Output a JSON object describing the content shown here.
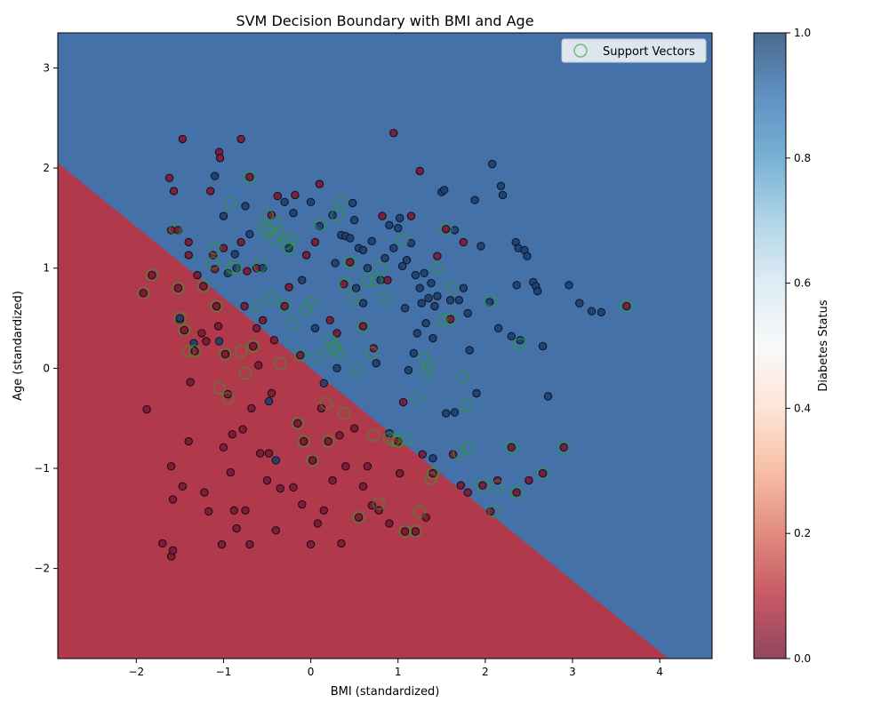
{
  "chart_data": {
    "type": "scatter",
    "title": "SVM Decision Boundary with BMI and Age",
    "xlabel": "BMI (standardized)",
    "ylabel": "Age (standardized)",
    "xlim": [
      -2.9,
      4.6
    ],
    "ylim": [
      -2.9,
      3.35
    ],
    "xticks": [
      -2,
      -1,
      0,
      1,
      2,
      3,
      4
    ],
    "yticks": [
      -2,
      -1,
      0,
      1,
      2,
      3
    ],
    "grid": false,
    "legend": {
      "placement": "top-right",
      "entries": [
        "Support Vectors"
      ]
    },
    "decision_boundary": {
      "comment_free": true,
      "x": [
        -2.9,
        4.1
      ],
      "y": [
        2.05,
        -2.9
      ],
      "region_above_class": 1,
      "region_below_class": 0
    },
    "colorbar": {
      "label": "Diabetes Status",
      "range": [
        0.0,
        1.0
      ],
      "ticks": [
        "0.0",
        "0.2",
        "0.4",
        "0.6",
        "0.8",
        "1.0"
      ]
    },
    "colors": {
      "class0_region": "#b03a4c",
      "class1_region": "#4471a8",
      "class0_point": "#7a1a35",
      "class1_point": "#1f3f6e",
      "support_vector_ring": "#2ca02c"
    },
    "points_class0": [
      [
        -1.92,
        0.75
      ],
      [
        -1.88,
        -0.41
      ],
      [
        -1.82,
        0.93
      ],
      [
        -1.7,
        -1.75
      ],
      [
        -1.62,
        1.9
      ],
      [
        -1.6,
        -1.88
      ],
      [
        -1.58,
        -1.82
      ],
      [
        -1.6,
        1.38
      ],
      [
        -1.57,
        1.77
      ],
      [
        -1.6,
        -0.98
      ],
      [
        -1.58,
        -1.31
      ],
      [
        -1.52,
        1.38
      ],
      [
        -1.5,
        0.48
      ],
      [
        -1.52,
        0.8
      ],
      [
        -1.47,
        2.29
      ],
      [
        -1.47,
        -1.18
      ],
      [
        -1.45,
        0.38
      ],
      [
        -1.4,
        1.26
      ],
      [
        -1.4,
        1.13
      ],
      [
        -1.4,
        -0.73
      ],
      [
        -1.38,
        -0.14
      ],
      [
        -1.33,
        0.17
      ],
      [
        -1.3,
        0.93
      ],
      [
        -1.25,
        0.35
      ],
      [
        -1.23,
        0.82
      ],
      [
        -1.22,
        -1.24
      ],
      [
        -1.17,
        -1.43
      ],
      [
        -1.15,
        1.77
      ],
      [
        -1.12,
        1.13
      ],
      [
        -1.1,
        0.99
      ],
      [
        -1.08,
        0.62
      ],
      [
        -1.06,
        0.42
      ],
      [
        -1.05,
        2.16
      ],
      [
        -1.04,
        2.1
      ],
      [
        -1.0,
        -0.79
      ],
      [
        -1.02,
        -1.76
      ],
      [
        -1.0,
        1.2
      ],
      [
        -0.98,
        0.14
      ],
      [
        -0.95,
        -0.26
      ],
      [
        -0.9,
        -0.66
      ],
      [
        -0.88,
        -1.42
      ],
      [
        -0.85,
        -1.6
      ],
      [
        -0.8,
        2.29
      ],
      [
        -0.8,
        1.26
      ],
      [
        -0.78,
        -0.61
      ],
      [
        -0.76,
        0.62
      ],
      [
        -0.75,
        -1.42
      ],
      [
        -0.73,
        0.97
      ],
      [
        -0.7,
        1.91
      ],
      [
        -0.7,
        -1.76
      ],
      [
        -0.68,
        -0.4
      ],
      [
        -0.66,
        0.22
      ],
      [
        -0.62,
        1.0
      ],
      [
        -0.6,
        0.03
      ],
      [
        -0.58,
        -0.85
      ],
      [
        -0.55,
        0.48
      ],
      [
        -0.5,
        -1.12
      ],
      [
        -0.48,
        -0.85
      ],
      [
        -0.45,
        1.53
      ],
      [
        -0.42,
        0.28
      ],
      [
        -0.4,
        -1.62
      ],
      [
        -0.38,
        1.72
      ],
      [
        -0.35,
        -1.2
      ],
      [
        -0.3,
        0.62
      ],
      [
        -0.25,
        0.81
      ],
      [
        -0.2,
        -1.19
      ],
      [
        -0.18,
        1.73
      ],
      [
        -0.15,
        -0.55
      ],
      [
        -0.12,
        0.13
      ],
      [
        -0.1,
        -1.36
      ],
      [
        -0.08,
        -0.73
      ],
      [
        -0.05,
        1.13
      ],
      [
        0.0,
        -1.76
      ],
      [
        0.02,
        -0.92
      ],
      [
        0.05,
        1.26
      ],
      [
        0.08,
        -1.55
      ],
      [
        0.1,
        1.84
      ],
      [
        0.15,
        -1.42
      ],
      [
        0.2,
        -0.73
      ],
      [
        0.22,
        0.48
      ],
      [
        0.25,
        -1.12
      ],
      [
        0.3,
        0.35
      ],
      [
        0.33,
        -0.67
      ],
      [
        0.35,
        -1.75
      ],
      [
        0.38,
        0.84
      ],
      [
        0.4,
        -0.98
      ],
      [
        0.45,
        1.06
      ],
      [
        0.5,
        -0.6
      ],
      [
        0.55,
        -1.49
      ],
      [
        0.6,
        0.42
      ],
      [
        0.65,
        -0.98
      ],
      [
        0.7,
        -1.37
      ],
      [
        0.72,
        0.2
      ],
      [
        0.78,
        -1.42
      ],
      [
        0.82,
        1.52
      ],
      [
        0.88,
        0.88
      ],
      [
        0.9,
        -1.55
      ],
      [
        0.95,
        2.35
      ],
      [
        1.0,
        -0.73
      ],
      [
        1.02,
        -1.05
      ],
      [
        1.06,
        -0.34
      ],
      [
        1.08,
        -1.63
      ],
      [
        1.15,
        1.52
      ],
      [
        1.2,
        -1.63
      ],
      [
        1.25,
        1.97
      ],
      [
        1.28,
        -0.86
      ],
      [
        1.32,
        -1.49
      ],
      [
        1.4,
        -1.05
      ],
      [
        1.45,
        1.12
      ],
      [
        1.55,
        1.39
      ],
      [
        1.6,
        0.49
      ],
      [
        1.63,
        -0.86
      ],
      [
        1.72,
        -1.17
      ],
      [
        1.75,
        1.26
      ],
      [
        1.8,
        -1.24
      ],
      [
        1.97,
        -1.17
      ],
      [
        2.06,
        -1.43
      ],
      [
        2.14,
        -1.12
      ],
      [
        2.3,
        -0.79
      ],
      [
        2.36,
        -1.24
      ],
      [
        2.5,
        -1.12
      ],
      [
        2.66,
        -1.05
      ],
      [
        2.9,
        -0.79
      ],
      [
        3.62,
        0.62
      ],
      [
        -1.2,
        0.27
      ],
      [
        -0.92,
        -1.04
      ],
      [
        -0.62,
        0.4
      ],
      [
        -0.45,
        -0.25
      ],
      [
        0.12,
        -0.4
      ],
      [
        0.6,
        -1.18
      ]
    ],
    "points_class1": [
      [
        -1.5,
        0.5
      ],
      [
        -1.34,
        0.25
      ],
      [
        -1.1,
        1.92
      ],
      [
        -1.05,
        0.27
      ],
      [
        -1.0,
        1.52
      ],
      [
        -0.95,
        0.95
      ],
      [
        -0.87,
        1.14
      ],
      [
        -0.75,
        1.62
      ],
      [
        -0.7,
        1.34
      ],
      [
        -0.55,
        1.0
      ],
      [
        -0.48,
        -0.33
      ],
      [
        -0.4,
        -0.92
      ],
      [
        -0.3,
        1.66
      ],
      [
        -0.2,
        1.55
      ],
      [
        -0.1,
        0.88
      ],
      [
        0.0,
        1.66
      ],
      [
        0.05,
        0.4
      ],
      [
        0.1,
        1.42
      ],
      [
        0.15,
        -0.15
      ],
      [
        0.25,
        1.53
      ],
      [
        0.3,
        0.0
      ],
      [
        0.35,
        1.33
      ],
      [
        0.4,
        1.32
      ],
      [
        0.45,
        1.3
      ],
      [
        0.48,
        1.65
      ],
      [
        0.5,
        1.48
      ],
      [
        0.52,
        0.8
      ],
      [
        0.55,
        1.2
      ],
      [
        0.6,
        1.18
      ],
      [
        0.65,
        1.0
      ],
      [
        0.7,
        1.27
      ],
      [
        0.75,
        0.05
      ],
      [
        0.8,
        0.88
      ],
      [
        0.85,
        1.1
      ],
      [
        0.9,
        1.43
      ],
      [
        0.95,
        1.2
      ],
      [
        1.0,
        1.4
      ],
      [
        1.02,
        1.5
      ],
      [
        1.05,
        1.02
      ],
      [
        1.08,
        0.6
      ],
      [
        1.1,
        1.08
      ],
      [
        1.12,
        -0.02
      ],
      [
        1.15,
        1.25
      ],
      [
        1.2,
        0.93
      ],
      [
        1.22,
        0.35
      ],
      [
        1.25,
        0.8
      ],
      [
        1.27,
        0.65
      ],
      [
        1.3,
        0.95
      ],
      [
        1.32,
        0.45
      ],
      [
        1.35,
        0.7
      ],
      [
        1.38,
        0.85
      ],
      [
        1.4,
        0.3
      ],
      [
        1.42,
        0.62
      ],
      [
        1.45,
        0.72
      ],
      [
        1.5,
        1.76
      ],
      [
        1.53,
        1.78
      ],
      [
        1.55,
        -0.45
      ],
      [
        1.6,
        0.68
      ],
      [
        1.65,
        1.38
      ],
      [
        1.7,
        0.68
      ],
      [
        1.75,
        0.8
      ],
      [
        1.8,
        0.55
      ],
      [
        1.82,
        0.18
      ],
      [
        1.88,
        1.68
      ],
      [
        1.9,
        -0.25
      ],
      [
        1.95,
        1.22
      ],
      [
        2.05,
        0.66
      ],
      [
        2.08,
        2.04
      ],
      [
        2.15,
        0.4
      ],
      [
        2.18,
        1.82
      ],
      [
        2.2,
        1.73
      ],
      [
        2.3,
        0.32
      ],
      [
        2.35,
        1.26
      ],
      [
        2.36,
        0.83
      ],
      [
        2.38,
        1.2
      ],
      [
        2.4,
        0.28
      ],
      [
        2.45,
        1.18
      ],
      [
        2.48,
        1.12
      ],
      [
        2.55,
        0.86
      ],
      [
        2.58,
        0.82
      ],
      [
        2.6,
        0.77
      ],
      [
        2.66,
        0.22
      ],
      [
        2.72,
        -0.28
      ],
      [
        2.96,
        0.83
      ],
      [
        3.08,
        0.65
      ],
      [
        3.22,
        0.57
      ],
      [
        3.33,
        0.56
      ],
      [
        -0.85,
        1.0
      ],
      [
        -0.25,
        1.2
      ],
      [
        0.28,
        1.05
      ],
      [
        0.6,
        0.65
      ],
      [
        0.9,
        -0.65
      ],
      [
        1.18,
        0.15
      ],
      [
        1.4,
        -0.9
      ],
      [
        1.65,
        -0.44
      ]
    ],
    "support_vectors": [
      [
        -1.92,
        0.75
      ],
      [
        -1.82,
        0.93
      ],
      [
        -1.52,
        0.8
      ],
      [
        -1.5,
        0.5
      ],
      [
        -1.4,
        0.17
      ],
      [
        -1.33,
        0.17
      ],
      [
        -1.23,
        0.82
      ],
      [
        -1.12,
        1.05
      ],
      [
        -1.08,
        0.62
      ],
      [
        -1.05,
        -0.2
      ],
      [
        -0.98,
        0.14
      ],
      [
        -0.95,
        -0.3
      ],
      [
        -0.92,
        1.65
      ],
      [
        -0.87,
        1.0
      ],
      [
        -0.8,
        0.17
      ],
      [
        -0.75,
        -0.05
      ],
      [
        -0.7,
        1.91
      ],
      [
        -0.66,
        0.22
      ],
      [
        -0.62,
        0.62
      ],
      [
        -0.58,
        1.02
      ],
      [
        -0.55,
        1.4
      ],
      [
        -0.5,
        1.53
      ],
      [
        -0.48,
        1.38
      ],
      [
        -0.45,
        0.7
      ],
      [
        -0.42,
        1.3
      ],
      [
        -0.4,
        1.45
      ],
      [
        -0.38,
        1.35
      ],
      [
        -0.35,
        0.05
      ],
      [
        -0.3,
        0.62
      ],
      [
        -0.28,
        1.25
      ],
      [
        -0.25,
        1.2
      ],
      [
        -0.22,
        1.3
      ],
      [
        -0.2,
        0.45
      ],
      [
        -0.15,
        -0.55
      ],
      [
        -0.12,
        0.13
      ],
      [
        -0.08,
        -0.73
      ],
      [
        -0.05,
        0.6
      ],
      [
        0.0,
        0.65
      ],
      [
        0.02,
        -0.92
      ],
      [
        0.08,
        0.12
      ],
      [
        0.12,
        1.44
      ],
      [
        0.18,
        -0.35
      ],
      [
        0.2,
        -0.73
      ],
      [
        0.22,
        0.28
      ],
      [
        0.25,
        0.2
      ],
      [
        0.28,
        0.22
      ],
      [
        0.3,
        1.53
      ],
      [
        0.32,
        0.15
      ],
      [
        0.35,
        1.65
      ],
      [
        0.38,
        -0.45
      ],
      [
        0.4,
        0.84
      ],
      [
        0.45,
        1.06
      ],
      [
        0.5,
        0.7
      ],
      [
        0.52,
        -0.02
      ],
      [
        0.55,
        -1.49
      ],
      [
        0.6,
        0.42
      ],
      [
        0.65,
        0.88
      ],
      [
        0.7,
        0.15
      ],
      [
        0.72,
        -0.67
      ],
      [
        0.75,
        0.88
      ],
      [
        0.78,
        -1.35
      ],
      [
        0.8,
        1.0
      ],
      [
        0.85,
        0.7
      ],
      [
        0.9,
        -0.7
      ],
      [
        0.95,
        -0.72
      ],
      [
        1.0,
        -0.73
      ],
      [
        1.05,
        1.28
      ],
      [
        1.08,
        -1.63
      ],
      [
        1.1,
        -0.72
      ],
      [
        1.2,
        -1.63
      ],
      [
        1.22,
        -0.3
      ],
      [
        1.25,
        -1.43
      ],
      [
        1.3,
        0.1
      ],
      [
        1.32,
        -0.05
      ],
      [
        1.35,
        0.02
      ],
      [
        1.38,
        -1.1
      ],
      [
        1.4,
        -1.05
      ],
      [
        1.45,
        1.0
      ],
      [
        1.5,
        0.48
      ],
      [
        1.55,
        1.39
      ],
      [
        1.6,
        0.49
      ],
      [
        1.63,
        0.8
      ],
      [
        1.7,
        -0.85
      ],
      [
        1.75,
        -0.08
      ],
      [
        1.78,
        -0.38
      ],
      [
        1.8,
        -0.8
      ],
      [
        1.97,
        -1.17
      ],
      [
        2.06,
        0.68
      ],
      [
        2.1,
        -1.43
      ],
      [
        2.14,
        -1.18
      ],
      [
        2.3,
        -0.79
      ],
      [
        2.36,
        -1.24
      ],
      [
        2.4,
        0.24
      ],
      [
        2.66,
        -1.05
      ],
      [
        2.9,
        -0.79
      ],
      [
        3.62,
        0.62
      ],
      [
        -1.55,
        1.39
      ],
      [
        -1.45,
        0.38
      ],
      [
        -1.1,
        1.2
      ],
      [
        -0.9,
        1.0
      ]
    ]
  }
}
